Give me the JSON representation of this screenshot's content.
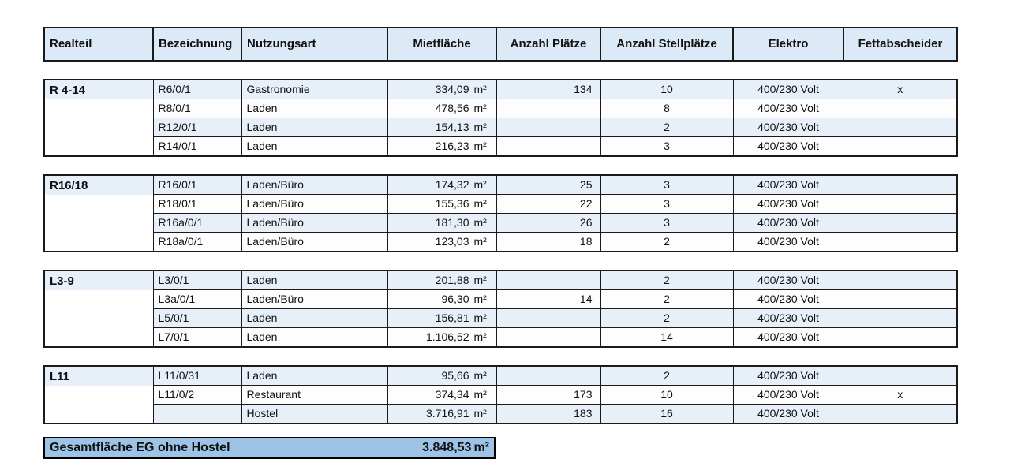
{
  "table": {
    "headers": [
      "Realteil",
      "Bezeichnung",
      "Nutzungsart",
      "Mietfläche",
      "Anzahl Plätze",
      "Anzahl Stellplätze",
      "Elektro",
      "Fettabscheider"
    ],
    "unit": "m²",
    "groups": [
      {
        "realteil": "R 4-14",
        "rows": [
          {
            "bezeichnung": "R6/0/1",
            "nutzungsart": "Gastronomie",
            "mietflaeche": "334,09",
            "plaetze": "134",
            "stellplaetze": "10",
            "elektro": "400/230 Volt",
            "fettabscheider": "x"
          },
          {
            "bezeichnung": "R8/0/1",
            "nutzungsart": "Laden",
            "mietflaeche": "478,56",
            "plaetze": "",
            "stellplaetze": "8",
            "elektro": "400/230 Volt",
            "fettabscheider": ""
          },
          {
            "bezeichnung": "R12/0/1",
            "nutzungsart": "Laden",
            "mietflaeche": "154,13",
            "plaetze": "",
            "stellplaetze": "2",
            "elektro": "400/230 Volt",
            "fettabscheider": ""
          },
          {
            "bezeichnung": "R14/0/1",
            "nutzungsart": "Laden",
            "mietflaeche": "216,23",
            "plaetze": "",
            "stellplaetze": "3",
            "elektro": "400/230 Volt",
            "fettabscheider": ""
          }
        ]
      },
      {
        "realteil": "R16/18",
        "rows": [
          {
            "bezeichnung": "R16/0/1",
            "nutzungsart": "Laden/Büro",
            "mietflaeche": "174,32",
            "plaetze": "25",
            "stellplaetze": "3",
            "elektro": "400/230 Volt",
            "fettabscheider": ""
          },
          {
            "bezeichnung": "R18/0/1",
            "nutzungsart": "Laden/Büro",
            "mietflaeche": "155,36",
            "plaetze": "22",
            "stellplaetze": "3",
            "elektro": "400/230 Volt",
            "fettabscheider": ""
          },
          {
            "bezeichnung": "R16a/0/1",
            "nutzungsart": "Laden/Büro",
            "mietflaeche": "181,30",
            "plaetze": "26",
            "stellplaetze": "3",
            "elektro": "400/230 Volt",
            "fettabscheider": ""
          },
          {
            "bezeichnung": "R18a/0/1",
            "nutzungsart": "Laden/Büro",
            "mietflaeche": "123,03",
            "plaetze": "18",
            "stellplaetze": "2",
            "elektro": "400/230 Volt",
            "fettabscheider": ""
          }
        ]
      },
      {
        "realteil": "L3-9",
        "rows": [
          {
            "bezeichnung": "L3/0/1",
            "nutzungsart": "Laden",
            "mietflaeche": "201,88",
            "plaetze": "",
            "stellplaetze": "2",
            "elektro": "400/230 Volt",
            "fettabscheider": ""
          },
          {
            "bezeichnung": "L3a/0/1",
            "nutzungsart": "Laden/Büro",
            "mietflaeche": "96,30",
            "plaetze": "14",
            "stellplaetze": "2",
            "elektro": "400/230 Volt",
            "fettabscheider": ""
          },
          {
            "bezeichnung": "L5/0/1",
            "nutzungsart": "Laden",
            "mietflaeche": "156,81",
            "plaetze": "",
            "stellplaetze": "2",
            "elektro": "400/230 Volt",
            "fettabscheider": ""
          },
          {
            "bezeichnung": "L7/0/1",
            "nutzungsart": "Laden",
            "mietflaeche": "1.106,52",
            "plaetze": "",
            "stellplaetze": "14",
            "elektro": "400/230 Volt",
            "fettabscheider": ""
          }
        ]
      },
      {
        "realteil": "L11",
        "rows": [
          {
            "bezeichnung": "L11/0/31",
            "nutzungsart": "Laden",
            "mietflaeche": "95,66",
            "plaetze": "",
            "stellplaetze": "2",
            "elektro": "400/230 Volt",
            "fettabscheider": ""
          },
          {
            "bezeichnung": "L11/0/2",
            "nutzungsart": "Restaurant",
            "mietflaeche": "374,34",
            "plaetze": "173",
            "stellplaetze": "10",
            "elektro": "400/230 Volt",
            "fettabscheider": "x"
          },
          {
            "bezeichnung": "",
            "nutzungsart": "Hostel",
            "mietflaeche": "3.716,91",
            "plaetze": "183",
            "stellplaetze": "16",
            "elektro": "400/230 Volt",
            "fettabscheider": ""
          }
        ]
      }
    ],
    "footer": {
      "label": "Gesamtfläche EG ohne Hostel",
      "value": "3.848,53",
      "unit": "m²"
    }
  }
}
